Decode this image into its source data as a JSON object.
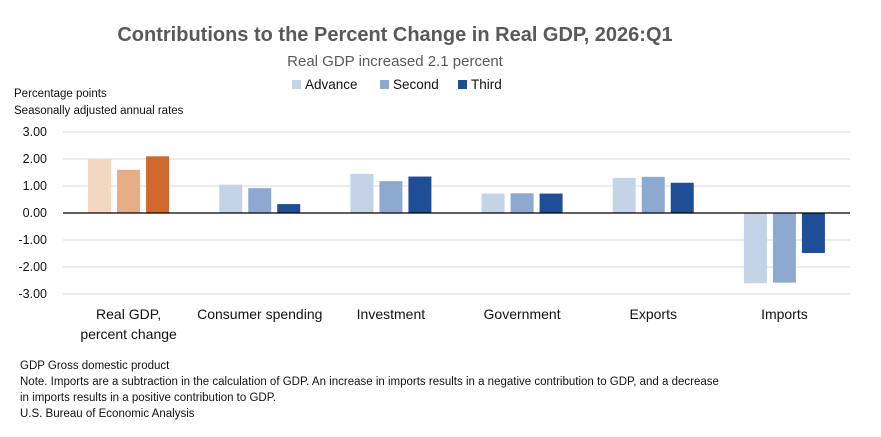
{
  "chart_data": {
    "type": "bar",
    "title": "Contributions to the Percent Change in Real GDP, 2026:Q1",
    "subtitle": "Real GDP increased 2.1 percent",
    "ylabel_line1": "Percentage points",
    "ylabel_line2": "Seasonally adjusted annual rates",
    "categories": [
      "Real GDP,\npercent change",
      "Consumer spending",
      "Investment",
      "Government",
      "Exports",
      "Imports"
    ],
    "ylim": [
      -3,
      3
    ],
    "yticks": [
      3,
      2,
      1,
      0,
      -1,
      -2,
      -3
    ],
    "ytick_labels": [
      "3.00",
      "2.00",
      "1.00",
      "0.00",
      "-1.00",
      "-2.00",
      "-3.00"
    ],
    "grid": true,
    "legend_position": "top-center",
    "series": [
      {
        "name": "Advance",
        "color": "#c5d3e6",
        "values": [
          2.0,
          1.05,
          1.45,
          0.72,
          1.3,
          -2.6
        ]
      },
      {
        "name": "Second",
        "color": "#8ea9cf",
        "values": [
          1.6,
          0.92,
          1.18,
          0.73,
          1.34,
          -2.58
        ]
      },
      {
        "name": "Third",
        "color": "#1f4e96",
        "values": [
          2.1,
          0.33,
          1.35,
          0.72,
          1.12,
          -1.48
        ]
      }
    ],
    "first_group_colors": [
      "#f4d7c1",
      "#e6ae86",
      "#d06a2c"
    ]
  },
  "notes": {
    "line1": "GDP Gross domestic product",
    "line2": "Note. Imports are a subtraction in the calculation of GDP. An increase in imports results in a negative contribution to GDP, and a decrease",
    "line3": "in imports results in a positive contribution to GDP.",
    "line4": "U.S. Bureau of Economic Analysis"
  }
}
